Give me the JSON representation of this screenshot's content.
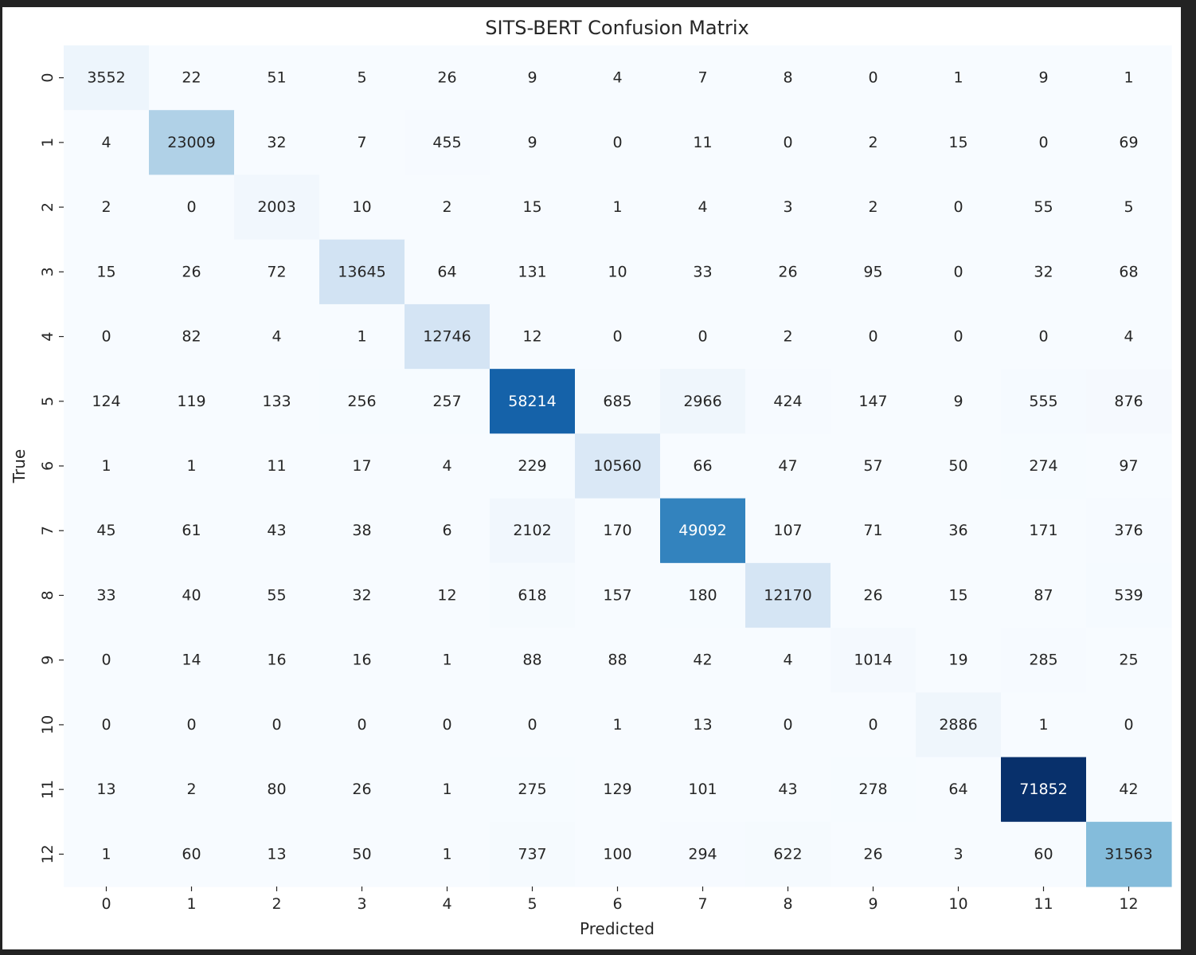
{
  "chart_data": {
    "type": "heatmap",
    "title": "SITS-BERT Confusion Matrix",
    "xlabel": "Predicted",
    "ylabel": "True",
    "x_categories": [
      "0",
      "1",
      "2",
      "3",
      "4",
      "5",
      "6",
      "7",
      "8",
      "9",
      "10",
      "11",
      "12"
    ],
    "y_categories": [
      "0",
      "1",
      "2",
      "3",
      "4",
      "5",
      "6",
      "7",
      "8",
      "9",
      "10",
      "11",
      "12"
    ],
    "colormap": "Blues",
    "colorbar": false,
    "value_range": [
      0,
      71852
    ],
    "values": [
      [
        3552,
        22,
        51,
        5,
        26,
        9,
        4,
        7,
        8,
        0,
        1,
        9,
        1
      ],
      [
        4,
        23009,
        32,
        7,
        455,
        9,
        0,
        11,
        0,
        2,
        15,
        0,
        69
      ],
      [
        2,
        0,
        2003,
        10,
        2,
        15,
        1,
        4,
        3,
        2,
        0,
        55,
        5
      ],
      [
        15,
        26,
        72,
        13645,
        64,
        131,
        10,
        33,
        26,
        95,
        0,
        32,
        68
      ],
      [
        0,
        82,
        4,
        1,
        12746,
        12,
        0,
        0,
        2,
        0,
        0,
        0,
        4
      ],
      [
        124,
        119,
        133,
        256,
        257,
        58214,
        685,
        2966,
        424,
        147,
        9,
        555,
        876
      ],
      [
        1,
        1,
        11,
        17,
        4,
        229,
        10560,
        66,
        47,
        57,
        50,
        274,
        97
      ],
      [
        45,
        61,
        43,
        38,
        6,
        2102,
        170,
        49092,
        107,
        71,
        36,
        171,
        376
      ],
      [
        33,
        40,
        55,
        32,
        12,
        618,
        157,
        180,
        12170,
        26,
        15,
        87,
        539
      ],
      [
        0,
        14,
        16,
        16,
        1,
        88,
        88,
        42,
        4,
        1014,
        19,
        285,
        25
      ],
      [
        0,
        0,
        0,
        0,
        0,
        0,
        1,
        13,
        0,
        0,
        2886,
        1,
        0
      ],
      [
        13,
        2,
        80,
        26,
        1,
        275,
        129,
        101,
        43,
        278,
        64,
        71852,
        42
      ],
      [
        1,
        60,
        13,
        50,
        1,
        737,
        100,
        294,
        622,
        26,
        3,
        60,
        31563
      ]
    ]
  }
}
